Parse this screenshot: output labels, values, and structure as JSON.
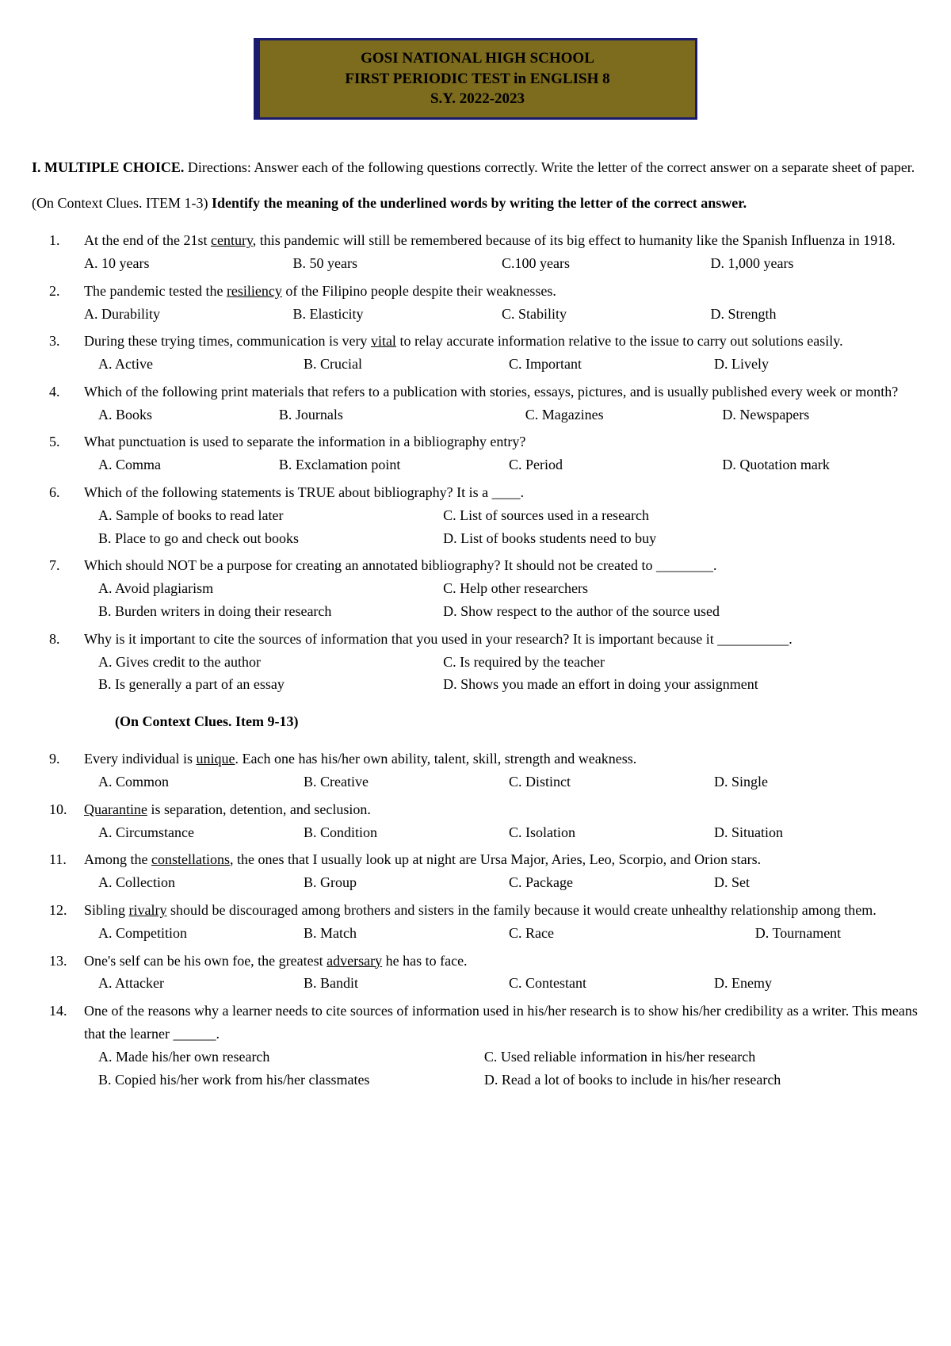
{
  "header": {
    "line1": "GOSI NATIONAL HIGH SCHOOL",
    "line2": "FIRST PERIODIC TEST in ENGLISH 8",
    "line3": "S.Y. 2022-2023"
  },
  "intro": {
    "heading": "I. MULTIPLE CHOICE.",
    "text": " Directions: Answer each of the following questions correctly. Write the letter of the correct answer on a separate sheet of paper."
  },
  "context1": {
    "prefix": "(On Context Clues. ITEM 1-3) ",
    "bold": "Identify the meaning of the underlined words by writing the letter of the correct answer."
  },
  "subheading2": "(On Context Clues. Item 9-13)",
  "q1": {
    "num": "1.",
    "pre": "At the end of the 21st ",
    "u": "century",
    "post": ", this pandemic will still be remembered because of its big effect to humanity like the Spanish Influenza in 1918.",
    "a": "A. 10 years",
    "b": "B. 50 years",
    "c": "C.100 years",
    "d": "D. 1,000 years"
  },
  "q2": {
    "num": "2.",
    "pre": "The pandemic tested the ",
    "u": "resiliency",
    "post": " of the Filipino people despite their weaknesses.",
    "a": "A.  Durability",
    "b": "B. Elasticity",
    "c": "C. Stability",
    "d": "D. Strength"
  },
  "q3": {
    "num": "3.",
    "pre": "During these trying times, communication is very ",
    "u": "vital",
    "post": " to relay accurate information relative to the issue to carry out solutions easily.",
    "a": "A.  Active",
    "b": "B. Crucial",
    "c": "C. Important",
    "d": "D. Lively"
  },
  "q4": {
    "num": "4.",
    "stem": "Which of the following print materials that refers to a publication with stories, essays, pictures, and is usually published every week or month?",
    "a": "A.  Books",
    "b": "B. Journals",
    "c": "C. Magazines",
    "d": "D. Newspapers"
  },
  "q5": {
    "num": "5.",
    "stem": "What punctuation is used to separate the information in a bibliography entry?",
    "a": "A.  Comma",
    "b": "B. Exclamation point",
    "c": "C. Period",
    "d": "D. Quotation mark"
  },
  "q6": {
    "num": "6.",
    "stem": "Which of the following statements is TRUE about bibliography? It is a ____.",
    "a": "A.  Sample of books to read later",
    "c": "C. List of sources used in a research",
    "b": "B.  Place to go and check out books",
    "d": "D. List of books students need to buy"
  },
  "q7": {
    "num": "7.",
    "stem": "Which should NOT be a purpose for creating an annotated bibliography? It should not be created to ________.",
    "a": "A.  Avoid plagiarism",
    "c": "C. Help other researchers",
    "b": "B.  Burden writers in doing their research",
    "d": "D. Show respect to the author of the source used"
  },
  "q8": {
    "num": "8.",
    "stem": "Why is it important to cite the sources of information that you used in your research? It is important because it __________.",
    "a": "A.  Gives credit to the author",
    "c": "C. Is required by the teacher",
    "b": "B.   Is generally a part of an essay",
    "d": "D. Shows you made an effort in doing your assignment"
  },
  "q9": {
    "num": "9.",
    "pre": "Every individual is ",
    "u": "unique",
    "post": ". Each one has his/her own ability, talent, skill, strength and weakness.",
    "a": "A.  Common",
    "b": "B. Creative",
    "c": "C. Distinct",
    "d": "D. Single"
  },
  "q10": {
    "num": "10.",
    "u": "Quarantine",
    "post": " is separation, detention, and seclusion.",
    "a": "A.  Circumstance",
    "b": "B. Condition",
    "c": "C. Isolation",
    "d": "D. Situation"
  },
  "q11": {
    "num": "11.",
    "pre": "Among the ",
    "u": "constellations",
    "post": ", the ones that I usually look up at night are Ursa Major, Aries, Leo, Scorpio, and Orion stars.",
    "a": "A.  Collection",
    "b": "B. Group",
    "c": "C. Package",
    "d": "D. Set"
  },
  "q12": {
    "num": "12.",
    "pre": "Sibling ",
    "u": "rivalry",
    "post": " should be discouraged among brothers and sisters in the family because it would create unhealthy relationship among them.",
    "a": "A.  Competition",
    "b": "B. Match",
    "c": "C. Race",
    "d": "D. Tournament"
  },
  "q13": {
    "num": "13.",
    "pre": "One's self can be his own foe, the greatest ",
    "u": "adversary",
    "post": " he has to face.",
    "a": "A.  Attacker",
    "b": "B. Bandit",
    "c": "C. Contestant",
    "d": "D. Enemy"
  },
  "q14": {
    "num": "14.",
    "stem": "One of the reasons why a learner needs to cite sources of information used in his/her research is to show his/her credibility as a writer. This means that the learner ______.",
    "a": "A.  Made his/her own research",
    "c": "C. Used reliable information in his/her research",
    "b": "B.  Copied his/her work from his/her classmates",
    "d": "D. Read a lot of books to include in his/her research"
  }
}
